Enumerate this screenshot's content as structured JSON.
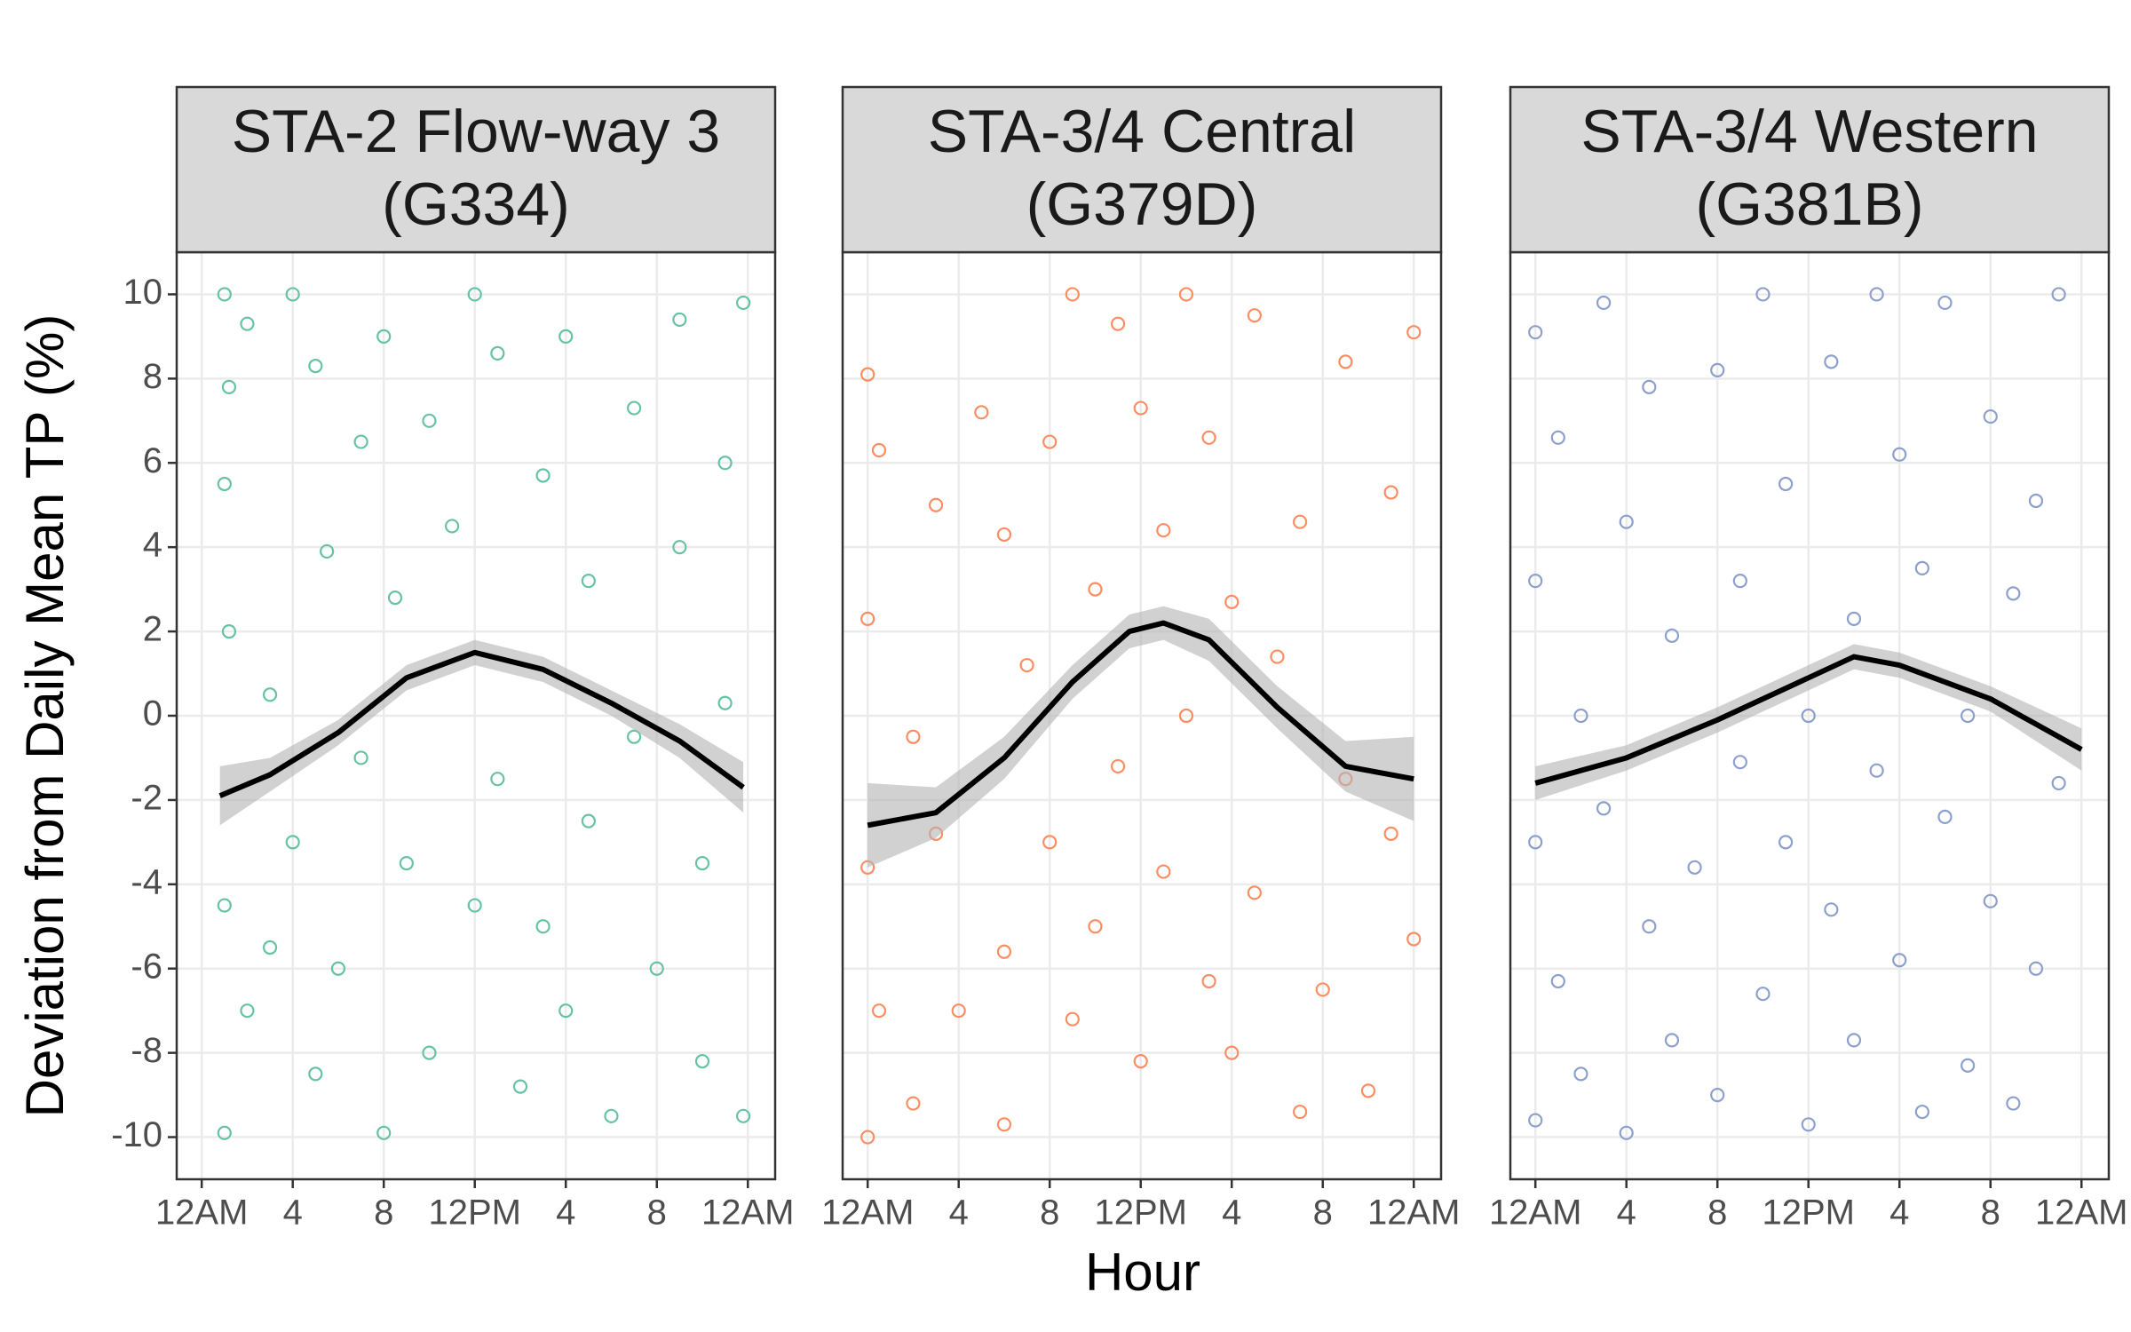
{
  "axis_labels": {
    "x": "Hour",
    "y": "Deviation from Daily Mean TP (%)"
  },
  "chart_data": [
    {
      "type": "scatter",
      "title": [
        "STA-2 Flow-way 3",
        "(G334)"
      ],
      "color": "#66c2a5",
      "grid": true,
      "xlim": [
        -1.1,
        25.2
      ],
      "ylim": [
        -11,
        11
      ],
      "xticks": [
        {
          "value": 0,
          "label": "12AM"
        },
        4,
        8,
        {
          "value": 12,
          "label": "12PM"
        },
        {
          "value": 16,
          "label": "4"
        },
        {
          "value": 20,
          "label": "8"
        },
        {
          "value": 24,
          "label": "12AM"
        }
      ],
      "yticks": [
        -10,
        -8,
        -6,
        -4,
        -2,
        0,
        2,
        4,
        6,
        8,
        10
      ],
      "points": [
        [
          1,
          10
        ],
        [
          1,
          -9.9
        ],
        [
          1.2,
          7.8
        ],
        [
          1,
          5.5
        ],
        [
          1.2,
          2
        ],
        [
          1,
          -4.5
        ],
        [
          2,
          -7
        ],
        [
          2,
          9.3
        ],
        [
          3,
          0.5
        ],
        [
          3,
          -5.5
        ],
        [
          4,
          10
        ],
        [
          4,
          -3
        ],
        [
          5,
          8.3
        ],
        [
          5,
          -8.5
        ],
        [
          5.5,
          3.9
        ],
        [
          6,
          -6
        ],
        [
          7,
          -1
        ],
        [
          7,
          6.5
        ],
        [
          8,
          9
        ],
        [
          8,
          -9.9
        ],
        [
          8.5,
          2.8
        ],
        [
          9,
          -3.5
        ],
        [
          10,
          7
        ],
        [
          10,
          -8
        ],
        [
          11,
          4.5
        ],
        [
          12,
          10
        ],
        [
          12,
          -4.5
        ],
        [
          13,
          -1.5
        ],
        [
          13,
          8.6
        ],
        [
          14,
          -8.8
        ],
        [
          15,
          5.7
        ],
        [
          15,
          -5
        ],
        [
          16,
          9
        ],
        [
          16,
          -7
        ],
        [
          17,
          -2.5
        ],
        [
          17,
          3.2
        ],
        [
          18,
          -9.5
        ],
        [
          19,
          7.3
        ],
        [
          19,
          -0.5
        ],
        [
          20,
          -6
        ],
        [
          21,
          4
        ],
        [
          21,
          9.4
        ],
        [
          22,
          -3.5
        ],
        [
          22,
          -8.2
        ],
        [
          23,
          6
        ],
        [
          23,
          0.3
        ],
        [
          23.8,
          -9.5
        ],
        [
          23.8,
          9.8
        ]
      ],
      "fit": {
        "x": [
          0.8,
          3,
          6,
          9,
          12,
          15,
          18,
          21,
          23.8
        ],
        "y": [
          -1.9,
          -1.4,
          -0.4,
          0.9,
          1.5,
          1.1,
          0.3,
          -0.6,
          -1.7
        ],
        "lower": [
          -2.6,
          -1.8,
          -0.7,
          0.6,
          1.2,
          0.8,
          0,
          -1,
          -2.3
        ],
        "upper": [
          -1.2,
          -1,
          -0.1,
          1.2,
          1.8,
          1.4,
          0.6,
          -0.2,
          -1.1
        ]
      }
    },
    {
      "type": "scatter",
      "title": [
        "STA-3/4 Central",
        "(G379D)"
      ],
      "color": "#fc8d62",
      "grid": true,
      "xlim": [
        -1.1,
        25.2
      ],
      "ylim": [
        -11,
        11
      ],
      "xticks": [
        {
          "value": 0,
          "label": "12AM"
        },
        4,
        8,
        {
          "value": 12,
          "label": "12PM"
        },
        {
          "value": 16,
          "label": "4"
        },
        {
          "value": 20,
          "label": "8"
        },
        {
          "value": 24,
          "label": "12AM"
        }
      ],
      "yticks": [
        -10,
        -8,
        -6,
        -4,
        -2,
        0,
        2,
        4,
        6,
        8,
        10
      ],
      "points": [
        [
          0,
          8.1
        ],
        [
          0,
          2.3
        ],
        [
          0,
          -3.6
        ],
        [
          0,
          -10
        ],
        [
          0.5,
          6.3
        ],
        [
          0.5,
          -7
        ],
        [
          2,
          -0.5
        ],
        [
          2,
          -9.2
        ],
        [
          3,
          5
        ],
        [
          3,
          -2.8
        ],
        [
          4,
          -7
        ],
        [
          5,
          7.2
        ],
        [
          6,
          -5.6
        ],
        [
          6,
          4.3
        ],
        [
          6,
          -9.7
        ],
        [
          7,
          1.2
        ],
        [
          8,
          -3
        ],
        [
          8,
          6.5
        ],
        [
          9,
          10
        ],
        [
          9,
          -7.2
        ],
        [
          10,
          3
        ],
        [
          10,
          -5
        ],
        [
          11,
          9.3
        ],
        [
          11,
          -1.2
        ],
        [
          12,
          7.3
        ],
        [
          12,
          -8.2
        ],
        [
          13,
          4.4
        ],
        [
          13,
          -3.7
        ],
        [
          14,
          0
        ],
        [
          14,
          10
        ],
        [
          15,
          -6.3
        ],
        [
          15,
          6.6
        ],
        [
          16,
          2.7
        ],
        [
          16,
          -8
        ],
        [
          17,
          9.5
        ],
        [
          17,
          -4.2
        ],
        [
          18,
          1.4
        ],
        [
          19,
          -9.4
        ],
        [
          19,
          4.6
        ],
        [
          20,
          -6.5
        ],
        [
          21,
          8.4
        ],
        [
          21,
          -1.5
        ],
        [
          22,
          -8.9
        ],
        [
          23,
          5.3
        ],
        [
          23,
          -2.8
        ],
        [
          24,
          9.1
        ],
        [
          24,
          -5.3
        ]
      ],
      "fit": {
        "x": [
          0,
          3,
          6,
          9,
          11.5,
          13,
          15,
          18,
          21,
          24
        ],
        "y": [
          -2.6,
          -2.3,
          -1,
          0.8,
          2,
          2.2,
          1.8,
          0.2,
          -1.2,
          -1.5
        ],
        "lower": [
          -3.6,
          -2.9,
          -1.5,
          0.4,
          1.6,
          1.8,
          1.3,
          -0.3,
          -1.8,
          -2.5
        ],
        "upper": [
          -1.6,
          -1.7,
          -0.5,
          1.2,
          2.4,
          2.6,
          2.3,
          0.7,
          -0.6,
          -0.5
        ]
      }
    },
    {
      "type": "scatter",
      "title": [
        "STA-3/4 Western",
        "(G381B)"
      ],
      "color": "#8da0cb",
      "grid": true,
      "xlim": [
        -1.1,
        25.2
      ],
      "ylim": [
        -11,
        11
      ],
      "xticks": [
        {
          "value": 0,
          "label": "12AM"
        },
        4,
        8,
        {
          "value": 12,
          "label": "12PM"
        },
        {
          "value": 16,
          "label": "4"
        },
        {
          "value": 20,
          "label": "8"
        },
        {
          "value": 24,
          "label": "12AM"
        }
      ],
      "yticks": [
        -10,
        -8,
        -6,
        -4,
        -2,
        0,
        2,
        4,
        6,
        8,
        10
      ],
      "points": [
        [
          0,
          9.1
        ],
        [
          0,
          3.2
        ],
        [
          0,
          -3
        ],
        [
          0,
          -9.6
        ],
        [
          1,
          6.6
        ],
        [
          1,
          -6.3
        ],
        [
          2,
          0
        ],
        [
          2,
          -8.5
        ],
        [
          3,
          9.8
        ],
        [
          3,
          -2.2
        ],
        [
          4,
          4.6
        ],
        [
          4,
          -9.9
        ],
        [
          5,
          -5
        ],
        [
          5,
          7.8
        ],
        [
          6,
          1.9
        ],
        [
          6,
          -7.7
        ],
        [
          7,
          -3.6
        ],
        [
          8,
          8.2
        ],
        [
          8,
          -9
        ],
        [
          9,
          3.2
        ],
        [
          9,
          -1.1
        ],
        [
          10,
          10
        ],
        [
          10,
          -6.6
        ],
        [
          11,
          5.5
        ],
        [
          11,
          -3
        ],
        [
          12,
          0
        ],
        [
          12,
          -9.7
        ],
        [
          13,
          8.4
        ],
        [
          13,
          -4.6
        ],
        [
          14,
          2.3
        ],
        [
          14,
          -7.7
        ],
        [
          15,
          10
        ],
        [
          15,
          -1.3
        ],
        [
          16,
          6.2
        ],
        [
          16,
          -5.8
        ],
        [
          17,
          -9.4
        ],
        [
          17,
          3.5
        ],
        [
          18,
          9.8
        ],
        [
          18,
          -2.4
        ],
        [
          19,
          0
        ],
        [
          19,
          -8.3
        ],
        [
          20,
          7.1
        ],
        [
          20,
          -4.4
        ],
        [
          21,
          2.9
        ],
        [
          21,
          -9.2
        ],
        [
          22,
          5.1
        ],
        [
          22,
          -6
        ],
        [
          23,
          10
        ],
        [
          23,
          -1.6
        ]
      ],
      "fit": {
        "x": [
          0,
          4,
          8,
          12,
          14,
          16,
          20,
          24
        ],
        "y": [
          -1.6,
          -1,
          -0.1,
          0.9,
          1.4,
          1.2,
          0.4,
          -0.8
        ],
        "lower": [
          -2,
          -1.3,
          -0.4,
          0.6,
          1.1,
          0.9,
          0.1,
          -1.3
        ],
        "upper": [
          -1.2,
          -0.7,
          0.2,
          1.2,
          1.7,
          1.5,
          0.7,
          -0.3
        ]
      }
    }
  ]
}
